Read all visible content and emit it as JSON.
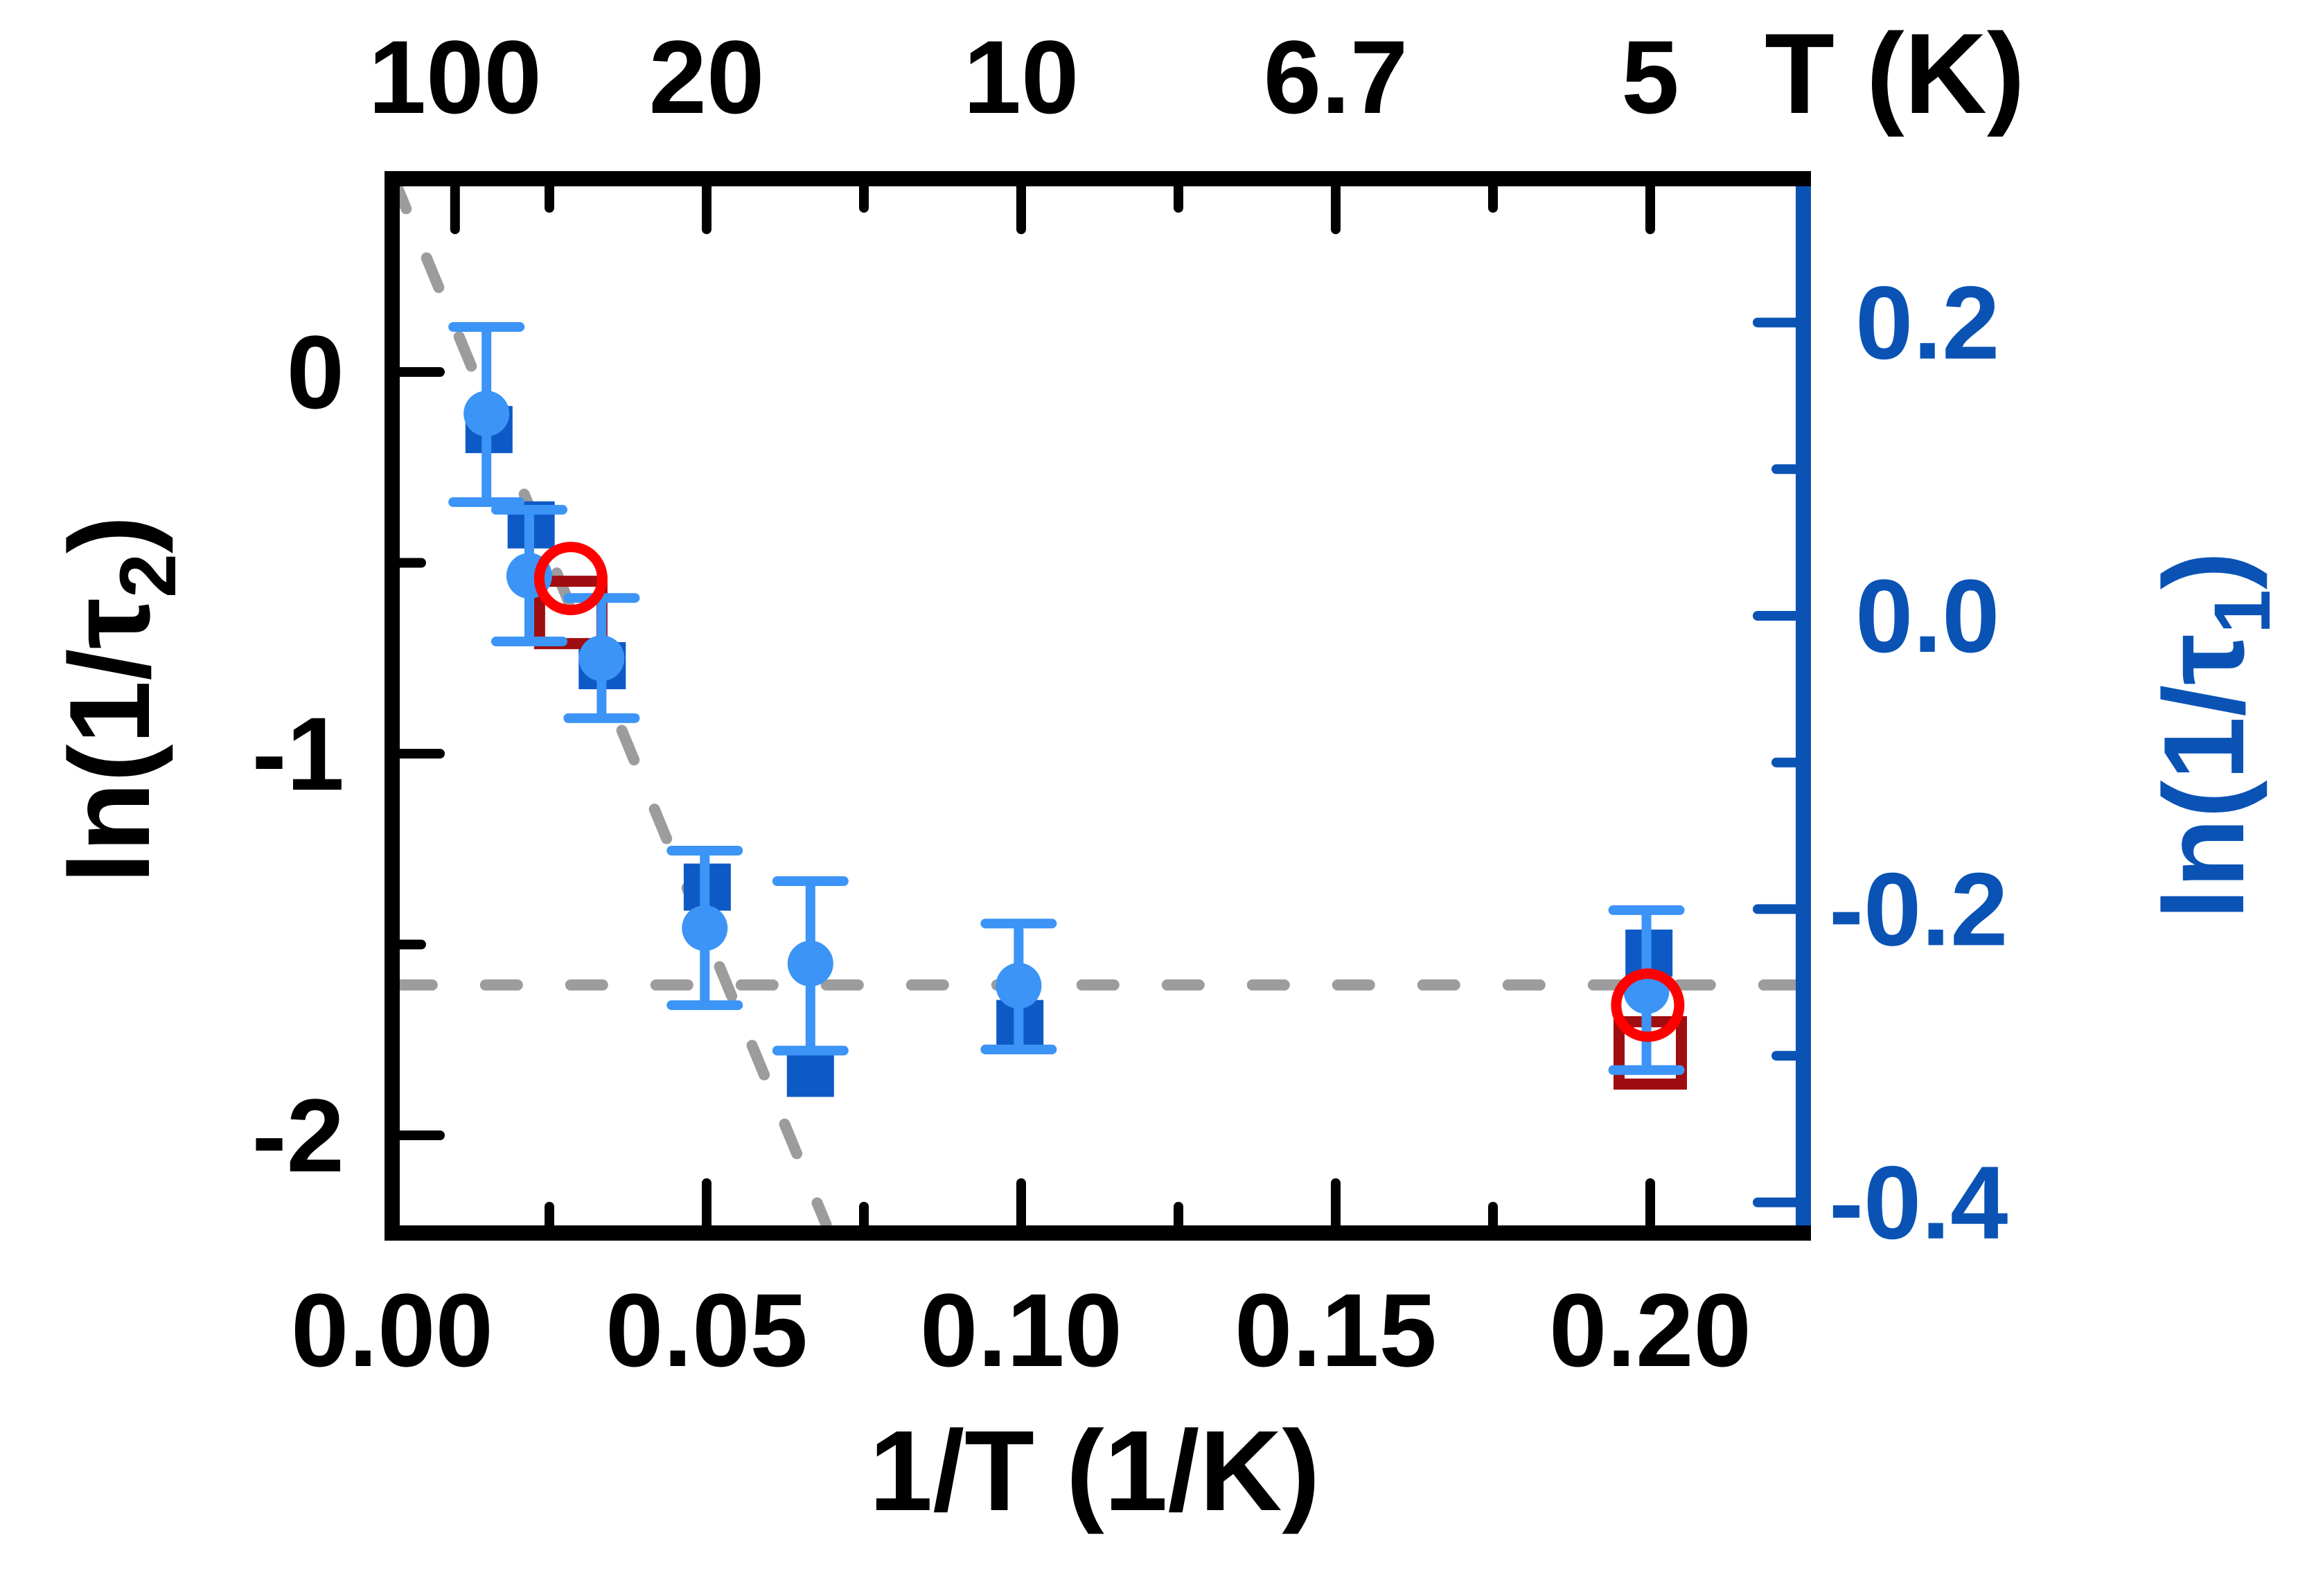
{
  "figure": {
    "kind": "publication-scatter-figure",
    "background": "#ffffff"
  },
  "colors": {
    "frame_black": "#000000",
    "axis_blue": "#0a53b5",
    "square_blue": "#0d5ac6",
    "circle_light_blue": "#3b94f6",
    "open_circle_red": "#ff0000",
    "open_square_dark_red": "#a00d10",
    "guide_gray": "#9c9c9c"
  },
  "chart_data": {
    "type": "scatter",
    "title": "",
    "grid": false,
    "legend": "none",
    "axes": {
      "bottom": {
        "title": "1/T (1/K)",
        "title_parts": [
          {
            "t": "1/T (1/K)"
          }
        ],
        "range": [
          0.0,
          0.2244
        ],
        "major_ticks": [
          {
            "v": 0.0,
            "label": "0.00"
          },
          {
            "v": 0.05,
            "label": "0.05"
          },
          {
            "v": 0.1,
            "label": "0.10"
          },
          {
            "v": 0.15,
            "label": "0.15"
          },
          {
            "v": 0.2,
            "label": "0.20"
          }
        ],
        "minor_ticks": [
          0.025,
          0.075,
          0.125,
          0.175
        ]
      },
      "top": {
        "title": "T (K)",
        "title_parts": [
          {
            "t": "T (K)"
          }
        ],
        "range": [
          0.0,
          0.2244
        ],
        "major_ticks": [
          {
            "v": 0.01,
            "label": "100"
          },
          {
            "v": 0.05,
            "label": "20"
          },
          {
            "v": 0.1,
            "label": "10"
          },
          {
            "v": 0.15,
            "label": "6.7"
          },
          {
            "v": 0.2,
            "label": "5"
          }
        ],
        "minor_ticks": [
          0.025,
          0.075,
          0.125,
          0.175
        ]
      },
      "left": {
        "title": "ln(1/τ2)",
        "title_parts": [
          {
            "t": "ln(1/τ"
          },
          {
            "t": "2",
            "sub": true
          },
          {
            "t": ")"
          }
        ],
        "range": [
          0.49,
          -2.24
        ],
        "major_ticks": [
          {
            "v": 0,
            "label": "0"
          },
          {
            "v": -1,
            "label": "-1"
          },
          {
            "v": -2,
            "label": "-2"
          }
        ],
        "minor_ticks": [
          -0.5,
          -1.5
        ]
      },
      "right": {
        "title": "ln(1/τ1)",
        "title_parts": [
          {
            "t": "ln(1/τ"
          },
          {
            "t": "1",
            "sub": true
          },
          {
            "t": ")"
          }
        ],
        "range": [
          0.29,
          -0.42
        ],
        "major_ticks": [
          {
            "v": 0.2,
            "label": "0.2"
          },
          {
            "v": 0.0,
            "label": "0.0"
          },
          {
            "v": -0.2,
            "label": "-0.2"
          },
          {
            "v": -0.4,
            "label": "-0.4"
          }
        ],
        "minor_ticks": [
          0.1,
          -0.1,
          -0.3
        ]
      }
    },
    "guide_lines": [
      {
        "name": "arrhenius-fit-line",
        "axis": "left",
        "style": "dashed",
        "x1": 0.0003,
        "y1": 0.505,
        "x2": 0.069,
        "y2": -2.234
      },
      {
        "name": "plateau-fit-line",
        "axis": "left",
        "style": "dashed",
        "x1": 0.0013,
        "y1": -1.606,
        "x2": 0.224,
        "y2": -1.606
      }
    ],
    "series": [
      {
        "id": "ln-inv-tau1-filled-squares",
        "marker": "square",
        "color": "#0d5ac6",
        "axis": "right",
        "points": [
          {
            "x": 0.0154,
            "y": 0.127
          },
          {
            "x": 0.0221,
            "y": 0.062
          },
          {
            "x": 0.0334,
            "y": -0.034
          },
          {
            "x": 0.0501,
            "y": -0.185
          },
          {
            "x": 0.0665,
            "y": -0.312
          },
          {
            "x": 0.0998,
            "y": -0.278
          },
          {
            "x": 0.1998,
            "y": -0.23
          }
        ]
      },
      {
        "id": "open-dark-red-squares",
        "marker": "open-square",
        "color": "#a00d10",
        "axis": "left",
        "points": [
          {
            "x": 0.0284,
            "y": -0.63
          },
          {
            "x": 0.2,
            "y": -1.784
          }
        ]
      },
      {
        "id": "ln-inv-tau2-filled-circles",
        "marker": "circle",
        "color": "#3b94f6",
        "axis": "left",
        "points": [
          {
            "x": 0.015,
            "y": -0.109,
            "yhi": 0.118,
            "ylo": -0.341
          },
          {
            "x": 0.0218,
            "y": -0.534,
            "yhi": -0.361,
            "ylo": -0.706
          },
          {
            "x": 0.0333,
            "y": -0.75,
            "yhi": -0.592,
            "ylo": -0.907
          },
          {
            "x": 0.0497,
            "y": -1.457,
            "yhi": -1.254,
            "ylo": -1.659
          },
          {
            "x": 0.0665,
            "y": -1.55,
            "yhi": -1.334,
            "ylo": -1.778
          },
          {
            "x": 0.0996,
            "y": -1.608,
            "yhi": -1.445,
            "ylo": -1.775
          },
          {
            "x": 0.1994,
            "y": -1.622,
            "yhi": -1.41,
            "ylo": -1.829
          }
        ]
      },
      {
        "id": "open-red-circles",
        "marker": "open-circle",
        "color": "#ff0000",
        "axis": "left",
        "points": [
          {
            "x": 0.0284,
            "y": -0.541
          },
          {
            "x": 0.1996,
            "y": -1.659
          }
        ]
      }
    ]
  }
}
